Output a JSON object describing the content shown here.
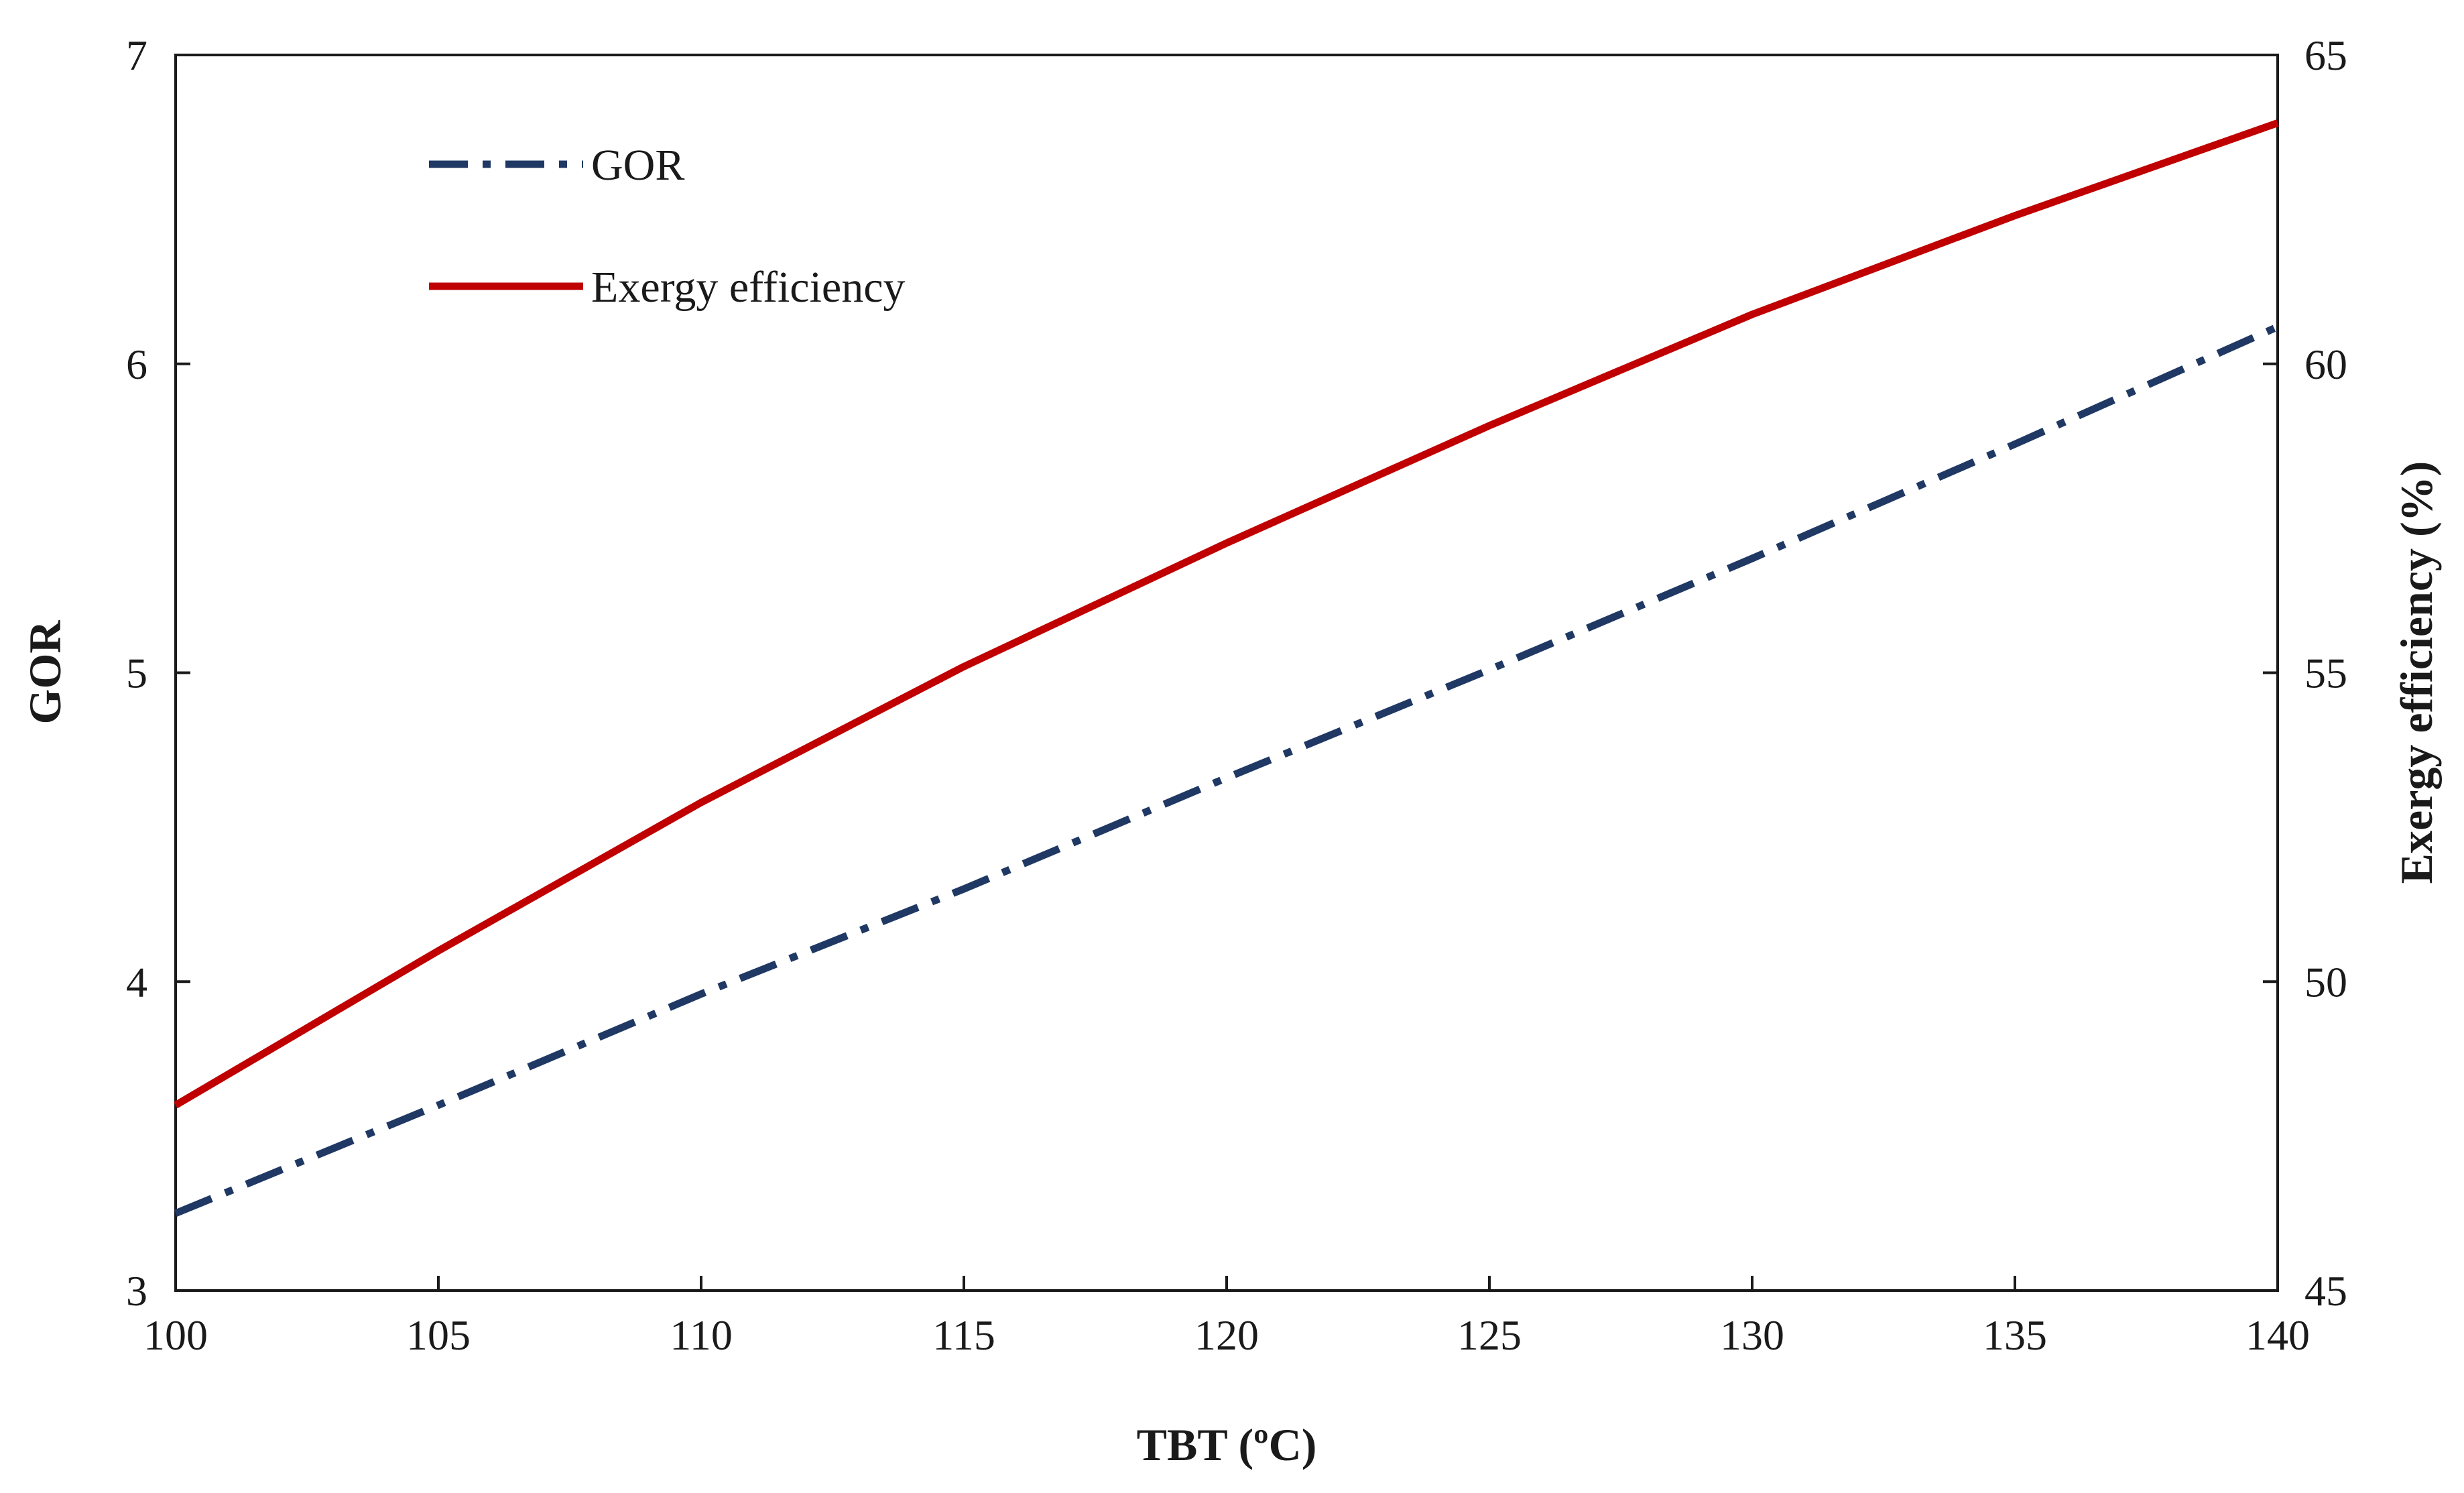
{
  "chart_data": {
    "type": "line",
    "xlabel": "TBT (ºC)",
    "ylabel": "GOR",
    "y2label": "Exergy efficiency (%)",
    "xlim": [
      100,
      140
    ],
    "ylim": [
      3,
      7
    ],
    "y2lim": [
      45,
      65
    ],
    "xticks": [
      100,
      105,
      110,
      115,
      120,
      125,
      130,
      135,
      140
    ],
    "yticks": [
      3,
      4,
      5,
      6,
      7
    ],
    "y2ticks": [
      45,
      50,
      55,
      60,
      65
    ],
    "grid": false,
    "legend_position": "top-left",
    "x": [
      100,
      105,
      110,
      115,
      120,
      125,
      130,
      135,
      140
    ],
    "series": [
      {
        "name": "GOR",
        "axis": "left",
        "style": "dash-dot",
        "color": "#1f3864",
        "values": [
          3.25,
          3.6,
          3.96,
          4.3,
          4.66,
          5.01,
          5.37,
          5.74,
          6.12
        ]
      },
      {
        "name": "Exergy efficiency",
        "axis": "right",
        "style": "solid",
        "color": "#c00000",
        "values": [
          48.0,
          50.5,
          52.9,
          55.1,
          57.1,
          59.0,
          60.8,
          62.4,
          63.9
        ]
      }
    ]
  }
}
